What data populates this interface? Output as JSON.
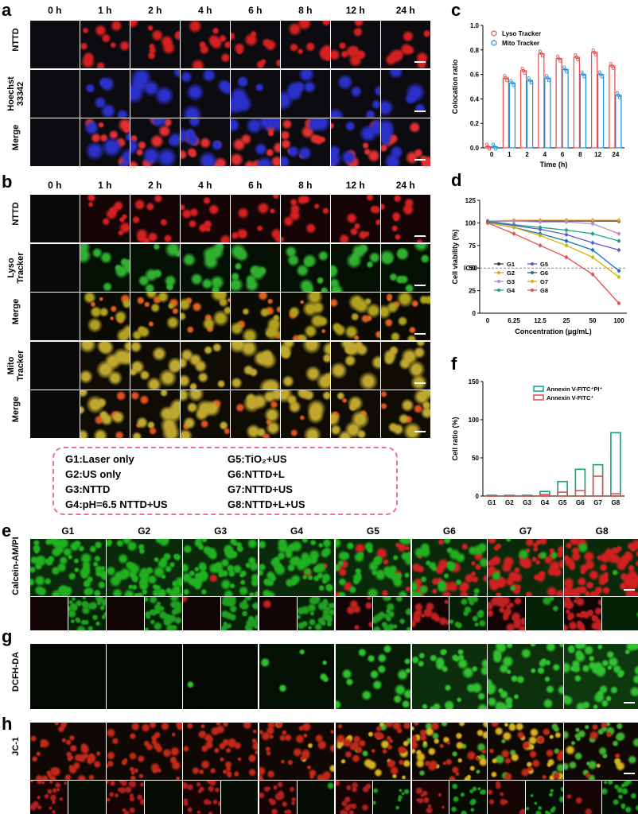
{
  "panels": {
    "a": "a",
    "b": "b",
    "c": "c",
    "d": "d",
    "e": "e",
    "f": "f",
    "g": "g",
    "h": "h"
  },
  "time_headers": [
    "0 h",
    "1 h",
    "2 h",
    "4 h",
    "6 h",
    "8 h",
    "12 h",
    "24 h"
  ],
  "group_headers": [
    "G1",
    "G2",
    "G3",
    "G4",
    "G5",
    "G6",
    "G7",
    "G8"
  ],
  "row_labels_a": [
    "NTTD",
    "Hoechst 33342",
    "Merge"
  ],
  "row_labels_b": [
    "NTTD",
    "Lyso Tracker",
    "Merge",
    "Mito Tracker",
    "Merge"
  ],
  "row_label_e": "Calcein-AM/PI",
  "row_label_g": "DCFH-DA",
  "row_label_h": "JC-1",
  "legend_groups": [
    {
      "text": "G1:Laser only",
      "color": "#3a3a3a"
    },
    {
      "text": "G2:US only",
      "color": "#f0a030"
    },
    {
      "text": "G3:NTTD",
      "color": "#b58cc8"
    },
    {
      "text": "G4:pH=6.5 NTTD+US",
      "color": "#1aa67a"
    },
    {
      "text": "G5:TiO₂+US",
      "color": "#5a5ad0"
    },
    {
      "text": "G6:NTTD+L",
      "color": "#1a6fb0"
    },
    {
      "text": "G7:NTTD+US",
      "color": "#d4b400"
    },
    {
      "text": "G8:NTTD+L+US",
      "color": "#e05050"
    }
  ],
  "colors": {
    "red": "#e02a2a",
    "blue": "#3040e0",
    "green": "#30c030",
    "yellow": "#e0c020",
    "bar_red": "#e84a4a",
    "bar_blue": "#2090e0",
    "bar_green": "#10a080"
  },
  "chart_data": [
    {
      "id": "c",
      "type": "bar",
      "ylabel": "Colocation ratio",
      "xlabel": "Time (h)",
      "categories": [
        "0",
        "1",
        "2",
        "4",
        "6",
        "8",
        "12",
        "24"
      ],
      "ylim": [
        0,
        1.0
      ],
      "yticks": [
        "0.0",
        "0.2",
        "0.4",
        "0.6",
        "0.8",
        "1.0"
      ],
      "series": [
        {
          "name": "Lyso Tracker",
          "values": [
            0.01,
            0.57,
            0.63,
            0.77,
            0.73,
            0.74,
            0.78,
            0.67
          ]
        },
        {
          "name": "Mito Tracker",
          "values": [
            0.01,
            0.53,
            0.55,
            0.57,
            0.64,
            0.6,
            0.6,
            0.43
          ]
        }
      ],
      "legend": "top-left"
    },
    {
      "id": "d",
      "type": "line",
      "ylabel": "Cell viability (%)",
      "xlabel": "Concentration (μg/mL)",
      "categories": [
        "0",
        "6.25",
        "12.5",
        "25",
        "50",
        "100"
      ],
      "ylim": [
        0,
        125
      ],
      "yticks": [
        "0",
        "25",
        "50",
        "75",
        "100",
        "125"
      ],
      "ic50_label": "IC50",
      "ic50_value": 50,
      "series": [
        {
          "name": "G1",
          "values": [
            102,
            102,
            102,
            102,
            102,
            102
          ],
          "color": "#3a3a3a"
        },
        {
          "name": "G2",
          "values": [
            102,
            103,
            103,
            103,
            103,
            103
          ],
          "color": "#f0a030"
        },
        {
          "name": "G3",
          "values": [
            102,
            102,
            101,
            101,
            99,
            88
          ],
          "color": "#b58cc8"
        },
        {
          "name": "G4",
          "values": [
            102,
            98,
            95,
            92,
            88,
            80
          ],
          "color": "#1aa67a"
        },
        {
          "name": "G5",
          "values": [
            101,
            97,
            93,
            87,
            78,
            70
          ],
          "color": "#5a5ad0"
        },
        {
          "name": "G6",
          "values": [
            100,
            95,
            88,
            80,
            70,
            47
          ],
          "color": "#1a6fb0"
        },
        {
          "name": "G7",
          "values": [
            100,
            95,
            86,
            75,
            62,
            40
          ],
          "color": "#d4b400"
        },
        {
          "name": "G8",
          "values": [
            100,
            88,
            75,
            62,
            43,
            11
          ],
          "color": "#e05050"
        }
      ]
    },
    {
      "id": "f",
      "type": "bar",
      "ylabel": "Cell ratio (%)",
      "categories": [
        "G1",
        "G2",
        "G3",
        "G4",
        "G5",
        "G6",
        "G7",
        "G8"
      ],
      "ylim": [
        0,
        150
      ],
      "yticks": [
        "0",
        "50",
        "100",
        "150"
      ],
      "series": [
        {
          "name": "Annexin V-FITC⁺PI⁺",
          "values": [
            1,
            1,
            1,
            6,
            19,
            35,
            41,
            83
          ]
        },
        {
          "name": "Annexin V-FITC⁺",
          "values": [
            0.5,
            0.5,
            0.5,
            2,
            5,
            7,
            26,
            3
          ]
        }
      ],
      "legend": "top-left"
    }
  ]
}
